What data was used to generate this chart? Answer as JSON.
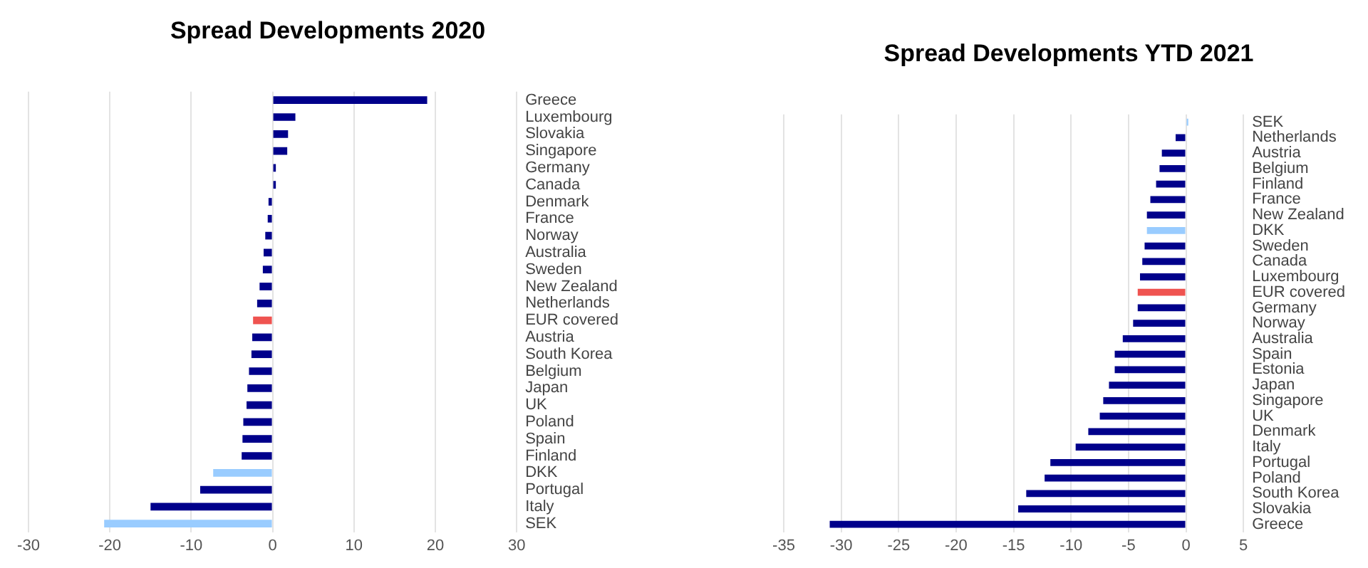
{
  "chart_data": [
    {
      "type": "bar",
      "title": "Spread Developments 2020",
      "orientation": "horizontal",
      "grid": "x",
      "legend": false,
      "categories": [
        "Greece",
        "Luxembourg",
        "Slovakia",
        "Singapore",
        "Germany",
        "Canada",
        "Denmark",
        "France",
        "Norway",
        "Australia",
        "Sweden",
        "New Zealand",
        "Netherlands",
        "EUR covered",
        "Austria",
        "South Korea",
        "Belgium",
        "Japan",
        "UK",
        "Poland",
        "Spain",
        "Finland",
        "DKK",
        "Portugal",
        "Italy",
        "SEK"
      ],
      "values": [
        19,
        2.8,
        1.9,
        1.8,
        0.4,
        0.4,
        -0.5,
        -0.6,
        -0.9,
        -1.1,
        -1.2,
        -1.6,
        -1.9,
        -2.4,
        -2.5,
        -2.6,
        -2.9,
        -3.1,
        -3.2,
        -3.6,
        -3.7,
        -3.8,
        -7.3,
        -8.9,
        -15,
        -20.7
      ],
      "colors": [
        "#00008b",
        "#00008b",
        "#00008b",
        "#00008b",
        "#00008b",
        "#00008b",
        "#00008b",
        "#00008b",
        "#00008b",
        "#00008b",
        "#00008b",
        "#00008b",
        "#00008b",
        "#ef5350",
        "#00008b",
        "#00008b",
        "#00008b",
        "#00008b",
        "#00008b",
        "#00008b",
        "#00008b",
        "#00008b",
        "#99ccff",
        "#00008b",
        "#00008b",
        "#99ccff"
      ],
      "xlim": [
        -30,
        30
      ],
      "xticks": [
        -30,
        -20,
        -10,
        0,
        10,
        20,
        30
      ]
    },
    {
      "type": "bar",
      "title": "Spread Developments YTD 2021",
      "orientation": "horizontal",
      "grid": "x",
      "legend": false,
      "categories": [
        "SEK",
        "Netherlands",
        "Austria",
        "Belgium",
        "Finland",
        "France",
        "New Zealand",
        "DKK",
        "Sweden",
        "Canada",
        "Luxembourg",
        "EUR covered",
        "Germany",
        "Norway",
        "Australia",
        "Spain",
        "Estonia",
        "Japan",
        "Singapore",
        "UK",
        "Denmark",
        "Italy",
        "Portugal",
        "Poland",
        "South Korea",
        "Slovakia",
        "Greece"
      ],
      "values": [
        0.2,
        -0.9,
        -2.1,
        -2.3,
        -2.6,
        -3.1,
        -3.4,
        -3.4,
        -3.6,
        -3.8,
        -4,
        -4.2,
        -4.2,
        -4.6,
        -5.5,
        -6.2,
        -6.2,
        -6.7,
        -7.2,
        -7.5,
        -8.5,
        -9.6,
        -11.8,
        -12.3,
        -13.9,
        -14.6,
        -31
      ],
      "colors": [
        "#99ccff",
        "#00008b",
        "#00008b",
        "#00008b",
        "#00008b",
        "#00008b",
        "#00008b",
        "#99ccff",
        "#00008b",
        "#00008b",
        "#00008b",
        "#ef5350",
        "#00008b",
        "#00008b",
        "#00008b",
        "#00008b",
        "#00008b",
        "#00008b",
        "#00008b",
        "#00008b",
        "#00008b",
        "#00008b",
        "#00008b",
        "#00008b",
        "#00008b",
        "#00008b",
        "#00008b"
      ],
      "xlim": [
        -35,
        5
      ],
      "xticks": [
        -35,
        -30,
        -25,
        -20,
        -15,
        -10,
        -5,
        0,
        5
      ]
    }
  ]
}
